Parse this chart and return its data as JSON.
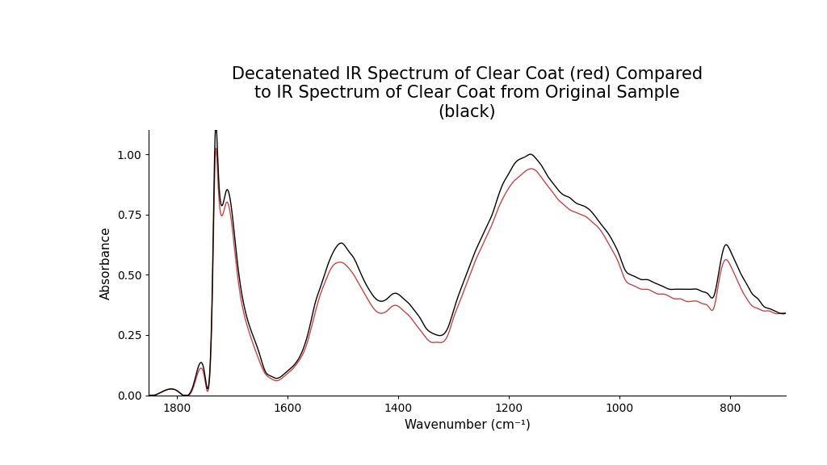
{
  "title": "Decatenated IR Spectrum of Clear Coat (red) Compared\nto IR Spectrum of Clear Coat from Original Sample\n(black)",
  "xlabel": "Wavenumber (cm⁻¹)",
  "ylabel": "Absorbance",
  "xlim": [
    1850,
    700
  ],
  "ylim": [
    0.0,
    1.1
  ],
  "xticks": [
    1800,
    1600,
    1400,
    1200,
    1000,
    800
  ],
  "yticks": [
    0.0,
    0.25,
    0.5,
    0.75,
    1.0
  ],
  "black_color": "#000000",
  "red_color": "#cc4444",
  "background_color": "#ffffff",
  "title_fontsize": 15,
  "axis_fontsize": 11,
  "tick_fontsize": 10,
  "linewidth": 1.0,
  "black_x": [
    1850,
    1840,
    1830,
    1800,
    1770,
    1750,
    1735,
    1730,
    1725,
    1710,
    1690,
    1670,
    1650,
    1640,
    1630,
    1620,
    1610,
    1600,
    1590,
    1580,
    1570,
    1560,
    1550,
    1540,
    1530,
    1520,
    1510,
    1500,
    1490,
    1480,
    1470,
    1460,
    1450,
    1440,
    1430,
    1420,
    1410,
    1400,
    1390,
    1380,
    1370,
    1360,
    1350,
    1340,
    1330,
    1320,
    1310,
    1300,
    1290,
    1280,
    1270,
    1260,
    1250,
    1240,
    1230,
    1220,
    1210,
    1200,
    1190,
    1180,
    1170,
    1160,
    1150,
    1140,
    1130,
    1120,
    1110,
    1100,
    1090,
    1080,
    1070,
    1060,
    1050,
    1040,
    1030,
    1020,
    1010,
    1000,
    990,
    980,
    970,
    960,
    950,
    940,
    930,
    920,
    910,
    900,
    890,
    880,
    870,
    860,
    850,
    840,
    830,
    820,
    810,
    800,
    790,
    780,
    770,
    760,
    750,
    740,
    730,
    720,
    710,
    700
  ],
  "black_y": [
    0.0,
    0.0,
    0.01,
    0.02,
    0.04,
    0.1,
    0.5,
    1.1,
    0.95,
    0.85,
    0.55,
    0.3,
    0.17,
    0.1,
    0.08,
    0.07,
    0.08,
    0.1,
    0.12,
    0.15,
    0.2,
    0.28,
    0.38,
    0.45,
    0.52,
    0.58,
    0.62,
    0.63,
    0.6,
    0.57,
    0.52,
    0.47,
    0.43,
    0.4,
    0.39,
    0.4,
    0.42,
    0.42,
    0.4,
    0.38,
    0.35,
    0.32,
    0.28,
    0.26,
    0.25,
    0.25,
    0.28,
    0.35,
    0.42,
    0.48,
    0.54,
    0.6,
    0.65,
    0.7,
    0.75,
    0.82,
    0.88,
    0.92,
    0.96,
    0.98,
    0.99,
    1.0,
    0.98,
    0.95,
    0.91,
    0.88,
    0.85,
    0.83,
    0.82,
    0.8,
    0.79,
    0.78,
    0.76,
    0.73,
    0.7,
    0.67,
    0.63,
    0.58,
    0.52,
    0.5,
    0.49,
    0.48,
    0.48,
    0.47,
    0.46,
    0.45,
    0.44,
    0.44,
    0.44,
    0.44,
    0.44,
    0.44,
    0.43,
    0.42,
    0.41,
    0.52,
    0.62,
    0.6,
    0.55,
    0.5,
    0.46,
    0.42,
    0.4,
    0.37,
    0.36,
    0.35,
    0.34,
    0.34
  ],
  "red_x": [
    1850,
    1840,
    1830,
    1800,
    1770,
    1750,
    1735,
    1730,
    1725,
    1710,
    1690,
    1670,
    1650,
    1640,
    1630,
    1620,
    1610,
    1600,
    1590,
    1580,
    1570,
    1560,
    1550,
    1540,
    1530,
    1520,
    1510,
    1500,
    1490,
    1480,
    1470,
    1460,
    1450,
    1440,
    1430,
    1420,
    1410,
    1400,
    1390,
    1380,
    1370,
    1360,
    1350,
    1340,
    1330,
    1320,
    1310,
    1300,
    1290,
    1280,
    1270,
    1260,
    1250,
    1240,
    1230,
    1220,
    1210,
    1200,
    1190,
    1180,
    1170,
    1160,
    1150,
    1140,
    1130,
    1120,
    1110,
    1100,
    1090,
    1080,
    1070,
    1060,
    1050,
    1040,
    1030,
    1020,
    1010,
    1000,
    990,
    980,
    970,
    960,
    950,
    940,
    930,
    920,
    910,
    900,
    890,
    880,
    870,
    860,
    850,
    840,
    830,
    820,
    810,
    800,
    790,
    780,
    770,
    760,
    750,
    740,
    730,
    720,
    710,
    700
  ],
  "red_y": [
    0.0,
    0.0,
    0.01,
    0.02,
    0.03,
    0.08,
    0.45,
    1.0,
    0.88,
    0.8,
    0.5,
    0.27,
    0.14,
    0.09,
    0.07,
    0.06,
    0.07,
    0.09,
    0.11,
    0.14,
    0.18,
    0.25,
    0.34,
    0.42,
    0.48,
    0.53,
    0.55,
    0.55,
    0.53,
    0.5,
    0.46,
    0.42,
    0.38,
    0.35,
    0.34,
    0.35,
    0.37,
    0.37,
    0.35,
    0.33,
    0.3,
    0.27,
    0.24,
    0.22,
    0.22,
    0.22,
    0.25,
    0.32,
    0.38,
    0.44,
    0.5,
    0.56,
    0.61,
    0.66,
    0.71,
    0.77,
    0.82,
    0.86,
    0.89,
    0.91,
    0.93,
    0.94,
    0.93,
    0.9,
    0.87,
    0.84,
    0.81,
    0.79,
    0.77,
    0.76,
    0.75,
    0.74,
    0.72,
    0.7,
    0.67,
    0.63,
    0.59,
    0.54,
    0.48,
    0.46,
    0.45,
    0.44,
    0.44,
    0.43,
    0.42,
    0.42,
    0.41,
    0.4,
    0.4,
    0.39,
    0.39,
    0.39,
    0.38,
    0.37,
    0.36,
    0.48,
    0.56,
    0.54,
    0.49,
    0.44,
    0.4,
    0.37,
    0.36,
    0.35,
    0.35,
    0.34,
    0.34,
    0.34
  ]
}
